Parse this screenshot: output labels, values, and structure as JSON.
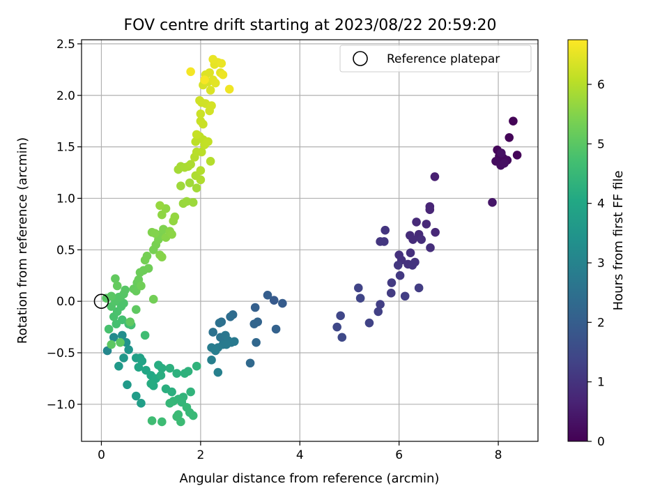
{
  "chart_data": {
    "type": "scatter",
    "title": "FOV centre drift starting at 2023/08/22 20:59:20",
    "xlabel": "Angular distance from reference (arcmin)",
    "ylabel": "Rotation from reference (arcmin)",
    "xlim": [
      -0.4,
      8.8
    ],
    "ylim": [
      -1.36,
      2.54
    ],
    "xticks": [
      0,
      2,
      4,
      6,
      8
    ],
    "xtick_labels": [
      "0",
      "2",
      "4",
      "6",
      "8"
    ],
    "yticks": [
      -1.0,
      -0.5,
      0.0,
      0.5,
      1.0,
      1.5,
      2.0,
      2.5
    ],
    "ytick_labels": [
      "−1.0",
      "−0.5",
      "0.0",
      "0.5",
      "1.0",
      "1.5",
      "2.0",
      "2.5"
    ],
    "grid": true,
    "legend": {
      "position": "upper-right",
      "label": "Reference platepar"
    },
    "reference_point": {
      "x": 0.0,
      "y": 0.0
    },
    "colorbar": {
      "label": "Hours from first FF file",
      "range": [
        0,
        6.75
      ],
      "ticks": [
        0,
        1,
        2,
        3,
        4,
        5,
        6
      ],
      "colormap": "viridis"
    },
    "points": [
      {
        "x": 8.3,
        "y": 1.75,
        "c": 0.05
      },
      {
        "x": 8.22,
        "y": 1.59,
        "c": 0.08
      },
      {
        "x": 8.38,
        "y": 1.42,
        "c": 0.1
      },
      {
        "x": 7.98,
        "y": 1.47,
        "c": 0.12
      },
      {
        "x": 8.02,
        "y": 1.41,
        "c": 0.15
      },
      {
        "x": 8.1,
        "y": 1.39,
        "c": 0.18
      },
      {
        "x": 8.18,
        "y": 1.37,
        "c": 0.2
      },
      {
        "x": 7.95,
        "y": 1.36,
        "c": 0.22
      },
      {
        "x": 8.05,
        "y": 1.32,
        "c": 0.25
      },
      {
        "x": 8.12,
        "y": 1.34,
        "c": 0.28
      },
      {
        "x": 8.06,
        "y": 1.44,
        "c": 0.3
      },
      {
        "x": 7.88,
        "y": 0.96,
        "c": 0.4
      },
      {
        "x": 6.72,
        "y": 1.21,
        "c": 0.6
      },
      {
        "x": 6.62,
        "y": 0.92,
        "c": 0.7
      },
      {
        "x": 6.62,
        "y": 0.89,
        "c": 0.72
      },
      {
        "x": 6.73,
        "y": 0.67,
        "c": 0.75
      },
      {
        "x": 6.55,
        "y": 0.75,
        "c": 0.78
      },
      {
        "x": 6.35,
        "y": 0.77,
        "c": 0.8
      },
      {
        "x": 6.4,
        "y": 0.65,
        "c": 0.82
      },
      {
        "x": 6.22,
        "y": 0.64,
        "c": 0.84
      },
      {
        "x": 6.28,
        "y": 0.6,
        "c": 0.86
      },
      {
        "x": 6.45,
        "y": 0.6,
        "c": 0.88
      },
      {
        "x": 6.63,
        "y": 0.52,
        "c": 0.9
      },
      {
        "x": 6.23,
        "y": 0.47,
        "c": 0.92
      },
      {
        "x": 6.0,
        "y": 0.45,
        "c": 0.94
      },
      {
        "x": 6.05,
        "y": 0.4,
        "c": 0.96
      },
      {
        "x": 6.18,
        "y": 0.36,
        "c": 0.98
      },
      {
        "x": 6.32,
        "y": 0.38,
        "c": 1.0
      },
      {
        "x": 6.27,
        "y": 0.35,
        "c": 1.02
      },
      {
        "x": 5.72,
        "y": 0.69,
        "c": 1.04
      },
      {
        "x": 5.62,
        "y": 0.58,
        "c": 1.06
      },
      {
        "x": 5.7,
        "y": 0.58,
        "c": 1.08
      },
      {
        "x": 5.98,
        "y": 0.35,
        "c": 1.1
      },
      {
        "x": 6.02,
        "y": 0.25,
        "c": 1.12
      },
      {
        "x": 5.85,
        "y": 0.18,
        "c": 1.15
      },
      {
        "x": 5.84,
        "y": 0.08,
        "c": 1.18
      },
      {
        "x": 6.4,
        "y": 0.13,
        "c": 1.2
      },
      {
        "x": 6.12,
        "y": 0.05,
        "c": 1.22
      },
      {
        "x": 5.62,
        "y": -0.03,
        "c": 1.25
      },
      {
        "x": 5.58,
        "y": -0.1,
        "c": 1.28
      },
      {
        "x": 5.4,
        "y": -0.21,
        "c": 1.32
      },
      {
        "x": 5.18,
        "y": 0.13,
        "c": 1.35
      },
      {
        "x": 5.22,
        "y": 0.03,
        "c": 1.38
      },
      {
        "x": 4.82,
        "y": -0.14,
        "c": 1.42
      },
      {
        "x": 4.75,
        "y": -0.25,
        "c": 1.45
      },
      {
        "x": 4.85,
        "y": -0.35,
        "c": 1.48
      },
      {
        "x": 3.48,
        "y": 0.01,
        "c": 1.9
      },
      {
        "x": 3.65,
        "y": -0.02,
        "c": 1.95
      },
      {
        "x": 3.35,
        "y": 0.06,
        "c": 2.0
      },
      {
        "x": 3.1,
        "y": -0.06,
        "c": 2.05
      },
      {
        "x": 3.52,
        "y": -0.27,
        "c": 2.1
      },
      {
        "x": 3.15,
        "y": -0.2,
        "c": 2.15
      },
      {
        "x": 3.08,
        "y": -0.22,
        "c": 2.2
      },
      {
        "x": 3.12,
        "y": -0.4,
        "c": 2.25
      },
      {
        "x": 3.0,
        "y": -0.6,
        "c": 2.3
      },
      {
        "x": 2.65,
        "y": -0.13,
        "c": 2.35
      },
      {
        "x": 2.6,
        "y": -0.15,
        "c": 2.4
      },
      {
        "x": 2.42,
        "y": -0.2,
        "c": 2.45
      },
      {
        "x": 2.38,
        "y": -0.21,
        "c": 2.5
      },
      {
        "x": 2.25,
        "y": -0.3,
        "c": 2.55
      },
      {
        "x": 2.4,
        "y": -0.35,
        "c": 2.6
      },
      {
        "x": 2.5,
        "y": -0.33,
        "c": 2.65
      },
      {
        "x": 2.55,
        "y": -0.38,
        "c": 2.7
      },
      {
        "x": 2.62,
        "y": -0.4,
        "c": 2.72
      },
      {
        "x": 2.68,
        "y": -0.39,
        "c": 2.74
      },
      {
        "x": 2.45,
        "y": -0.42,
        "c": 2.76
      },
      {
        "x": 2.52,
        "y": -0.42,
        "c": 2.78
      },
      {
        "x": 2.35,
        "y": -0.45,
        "c": 2.8
      },
      {
        "x": 2.22,
        "y": -0.45,
        "c": 2.82
      },
      {
        "x": 2.3,
        "y": -0.48,
        "c": 2.85
      },
      {
        "x": 2.22,
        "y": -0.57,
        "c": 2.88
      },
      {
        "x": 2.35,
        "y": -0.69,
        "c": 2.92
      },
      {
        "x": 0.12,
        "y": -0.48,
        "c": 3.1
      },
      {
        "x": 0.25,
        "y": -0.35,
        "c": 3.2
      },
      {
        "x": 0.42,
        "y": -0.33,
        "c": 3.3
      },
      {
        "x": 0.5,
        "y": -0.4,
        "c": 3.4
      },
      {
        "x": 0.55,
        "y": -0.47,
        "c": 3.5
      },
      {
        "x": 0.45,
        "y": -0.55,
        "c": 3.55
      },
      {
        "x": 0.35,
        "y": -0.63,
        "c": 3.6
      },
      {
        "x": 0.52,
        "y": -0.81,
        "c": 3.65
      },
      {
        "x": 0.7,
        "y": -0.92,
        "c": 3.7
      },
      {
        "x": 0.8,
        "y": -0.99,
        "c": 3.75
      },
      {
        "x": 0.7,
        "y": -0.55,
        "c": 3.8
      },
      {
        "x": 0.78,
        "y": -0.55,
        "c": 3.85
      },
      {
        "x": 0.82,
        "y": -0.58,
        "c": 3.9
      },
      {
        "x": 0.75,
        "y": -0.64,
        "c": 3.95
      },
      {
        "x": 0.9,
        "y": -0.67,
        "c": 4.0
      },
      {
        "x": 1.0,
        "y": -0.72,
        "c": 4.05
      },
      {
        "x": 1.1,
        "y": -0.75,
        "c": 4.1
      },
      {
        "x": 1.05,
        "y": -0.82,
        "c": 4.12
      },
      {
        "x": 1.0,
        "y": -0.8,
        "c": 4.14
      },
      {
        "x": 1.15,
        "y": -0.62,
        "c": 4.16
      },
      {
        "x": 1.22,
        "y": -0.65,
        "c": 4.18
      },
      {
        "x": 1.2,
        "y": -0.72,
        "c": 4.2
      },
      {
        "x": 1.3,
        "y": -0.85,
        "c": 4.22
      },
      {
        "x": 1.42,
        "y": -0.88,
        "c": 4.24
      },
      {
        "x": 1.38,
        "y": -0.65,
        "c": 4.26
      },
      {
        "x": 1.52,
        "y": -0.7,
        "c": 4.28
      },
      {
        "x": 1.68,
        "y": -0.7,
        "c": 4.3
      },
      {
        "x": 1.75,
        "y": -0.68,
        "c": 4.32
      },
      {
        "x": 1.92,
        "y": -0.63,
        "c": 4.34
      },
      {
        "x": 1.8,
        "y": -0.88,
        "c": 4.36
      },
      {
        "x": 1.65,
        "y": -0.93,
        "c": 4.38
      },
      {
        "x": 1.55,
        "y": -0.95,
        "c": 4.4
      },
      {
        "x": 1.62,
        "y": -0.98,
        "c": 4.42
      },
      {
        "x": 1.45,
        "y": -0.97,
        "c": 4.44
      },
      {
        "x": 1.38,
        "y": -0.99,
        "c": 4.46
      },
      {
        "x": 1.72,
        "y": -1.03,
        "c": 4.48
      },
      {
        "x": 1.78,
        "y": -1.08,
        "c": 4.5
      },
      {
        "x": 1.85,
        "y": -1.11,
        "c": 4.52
      },
      {
        "x": 1.55,
        "y": -1.1,
        "c": 4.54
      },
      {
        "x": 1.52,
        "y": -1.12,
        "c": 4.56
      },
      {
        "x": 1.6,
        "y": -1.17,
        "c": 4.58
      },
      {
        "x": 1.22,
        "y": -1.17,
        "c": 4.6
      },
      {
        "x": 1.02,
        "y": -1.16,
        "c": 4.62
      },
      {
        "x": 0.88,
        "y": -0.33,
        "c": 4.65
      },
      {
        "x": 0.55,
        "y": -0.22,
        "c": 4.68
      },
      {
        "x": 0.6,
        "y": -0.23,
        "c": 4.7
      },
      {
        "x": 0.42,
        "y": -0.18,
        "c": 4.72
      },
      {
        "x": 0.3,
        "y": -0.22,
        "c": 4.74
      },
      {
        "x": 0.15,
        "y": -0.27,
        "c": 4.76
      },
      {
        "x": 0.25,
        "y": -0.15,
        "c": 4.78
      },
      {
        "x": 0.32,
        "y": -0.1,
        "c": 4.8
      },
      {
        "x": 0.4,
        "y": -0.05,
        "c": 4.82
      },
      {
        "x": 0.45,
        "y": -0.02,
        "c": 4.84
      },
      {
        "x": 0.38,
        "y": 0.03,
        "c": 4.86
      },
      {
        "x": 0.2,
        "y": -0.05,
        "c": 4.88
      },
      {
        "x": 0.28,
        "y": 0.0,
        "c": 4.9
      },
      {
        "x": 0.35,
        "y": 0.04,
        "c": 4.92
      },
      {
        "x": 0.45,
        "y": 0.07,
        "c": 4.94
      },
      {
        "x": 0.48,
        "y": 0.11,
        "c": 4.96
      },
      {
        "x": 0.1,
        "y": 0.03,
        "c": 4.98
      },
      {
        "x": 0.2,
        "y": 0.05,
        "c": 5.0
      },
      {
        "x": 0.38,
        "y": -0.4,
        "c": 5.02
      },
      {
        "x": 0.2,
        "y": -0.42,
        "c": 5.04
      },
      {
        "x": 0.7,
        "y": -0.08,
        "c": 5.06
      },
      {
        "x": 0.58,
        "y": -0.2,
        "c": 5.08
      },
      {
        "x": 0.28,
        "y": 0.22,
        "c": 5.1
      },
      {
        "x": 0.32,
        "y": 0.15,
        "c": 5.12
      },
      {
        "x": 0.65,
        "y": 0.12,
        "c": 5.14
      },
      {
        "x": 0.7,
        "y": 0.1,
        "c": 5.16
      },
      {
        "x": 0.72,
        "y": 0.18,
        "c": 5.18
      },
      {
        "x": 0.75,
        "y": 0.21,
        "c": 5.2
      },
      {
        "x": 0.78,
        "y": 0.28,
        "c": 5.22
      },
      {
        "x": 0.85,
        "y": 0.3,
        "c": 5.24
      },
      {
        "x": 0.95,
        "y": 0.32,
        "c": 5.26
      },
      {
        "x": 0.8,
        "y": 0.15,
        "c": 5.28
      },
      {
        "x": 1.05,
        "y": 0.02,
        "c": 5.3
      },
      {
        "x": 0.88,
        "y": 0.4,
        "c": 5.32
      },
      {
        "x": 0.92,
        "y": 0.44,
        "c": 5.34
      },
      {
        "x": 1.05,
        "y": 0.5,
        "c": 5.36
      },
      {
        "x": 1.1,
        "y": 0.55,
        "c": 5.38
      },
      {
        "x": 1.15,
        "y": 0.6,
        "c": 5.4
      },
      {
        "x": 1.2,
        "y": 0.65,
        "c": 5.42
      },
      {
        "x": 1.25,
        "y": 0.7,
        "c": 5.44
      },
      {
        "x": 1.02,
        "y": 0.67,
        "c": 5.46
      },
      {
        "x": 1.08,
        "y": 0.66,
        "c": 5.48
      },
      {
        "x": 1.18,
        "y": 0.45,
        "c": 5.5
      },
      {
        "x": 1.22,
        "y": 0.43,
        "c": 5.52
      },
      {
        "x": 1.3,
        "y": 0.62,
        "c": 5.54
      },
      {
        "x": 1.38,
        "y": 0.68,
        "c": 5.56
      },
      {
        "x": 1.42,
        "y": 0.65,
        "c": 5.58
      },
      {
        "x": 1.22,
        "y": 0.84,
        "c": 5.6
      },
      {
        "x": 1.3,
        "y": 0.9,
        "c": 5.62
      },
      {
        "x": 1.45,
        "y": 0.78,
        "c": 5.64
      },
      {
        "x": 1.48,
        "y": 0.82,
        "c": 5.66
      },
      {
        "x": 1.18,
        "y": 0.93,
        "c": 5.68
      },
      {
        "x": 1.65,
        "y": 0.95,
        "c": 5.7
      },
      {
        "x": 1.72,
        "y": 0.97,
        "c": 5.72
      },
      {
        "x": 1.85,
        "y": 0.96,
        "c": 5.74
      },
      {
        "x": 1.6,
        "y": 1.12,
        "c": 5.76
      },
      {
        "x": 1.78,
        "y": 1.15,
        "c": 5.78
      },
      {
        "x": 1.92,
        "y": 1.1,
        "c": 5.8
      },
      {
        "x": 1.55,
        "y": 1.28,
        "c": 5.82
      },
      {
        "x": 1.6,
        "y": 1.31,
        "c": 5.84
      },
      {
        "x": 1.68,
        "y": 1.3,
        "c": 5.86
      },
      {
        "x": 1.75,
        "y": 1.31,
        "c": 5.88
      },
      {
        "x": 1.8,
        "y": 1.33,
        "c": 5.9
      },
      {
        "x": 1.9,
        "y": 1.22,
        "c": 5.92
      },
      {
        "x": 2.0,
        "y": 1.18,
        "c": 5.94
      },
      {
        "x": 2.0,
        "y": 1.27,
        "c": 5.96
      },
      {
        "x": 2.2,
        "y": 1.36,
        "c": 5.98
      },
      {
        "x": 1.88,
        "y": 1.4,
        "c": 6.0
      },
      {
        "x": 1.92,
        "y": 1.45,
        "c": 6.02
      },
      {
        "x": 2.02,
        "y": 1.45,
        "c": 6.04
      },
      {
        "x": 1.9,
        "y": 1.55,
        "c": 6.06
      },
      {
        "x": 1.98,
        "y": 1.6,
        "c": 6.08
      },
      {
        "x": 2.05,
        "y": 1.57,
        "c": 6.1
      },
      {
        "x": 2.08,
        "y": 1.52,
        "c": 6.12
      },
      {
        "x": 2.15,
        "y": 1.55,
        "c": 6.14
      },
      {
        "x": 1.92,
        "y": 1.62,
        "c": 6.16
      },
      {
        "x": 2.0,
        "y": 1.75,
        "c": 6.18
      },
      {
        "x": 2.05,
        "y": 1.72,
        "c": 6.2
      },
      {
        "x": 2.0,
        "y": 1.82,
        "c": 6.22
      },
      {
        "x": 2.02,
        "y": 1.93,
        "c": 6.24
      },
      {
        "x": 1.98,
        "y": 1.95,
        "c": 6.26
      },
      {
        "x": 2.1,
        "y": 1.92,
        "c": 6.28
      },
      {
        "x": 2.18,
        "y": 1.85,
        "c": 6.3
      },
      {
        "x": 2.22,
        "y": 1.9,
        "c": 6.32
      },
      {
        "x": 2.05,
        "y": 2.1,
        "c": 6.34
      },
      {
        "x": 2.15,
        "y": 2.13,
        "c": 6.36
      },
      {
        "x": 2.2,
        "y": 2.05,
        "c": 6.38
      },
      {
        "x": 2.1,
        "y": 2.2,
        "c": 6.4
      },
      {
        "x": 2.18,
        "y": 2.22,
        "c": 6.42
      },
      {
        "x": 2.25,
        "y": 2.15,
        "c": 6.44
      },
      {
        "x": 2.3,
        "y": 2.12,
        "c": 6.46
      },
      {
        "x": 2.4,
        "y": 2.22,
        "c": 6.48
      },
      {
        "x": 2.28,
        "y": 2.3,
        "c": 6.5
      },
      {
        "x": 2.35,
        "y": 2.32,
        "c": 6.52
      },
      {
        "x": 2.25,
        "y": 2.35,
        "c": 6.54
      },
      {
        "x": 2.42,
        "y": 2.31,
        "c": 6.56
      },
      {
        "x": 2.45,
        "y": 2.2,
        "c": 6.58
      },
      {
        "x": 2.58,
        "y": 2.06,
        "c": 6.6
      },
      {
        "x": 1.8,
        "y": 2.23,
        "c": 6.65
      },
      {
        "x": 2.08,
        "y": 2.15,
        "c": 6.68
      }
    ]
  }
}
